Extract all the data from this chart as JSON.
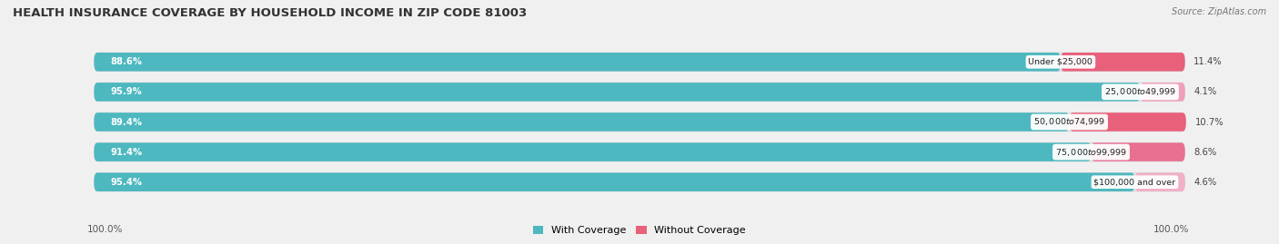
{
  "title": "HEALTH INSURANCE COVERAGE BY HOUSEHOLD INCOME IN ZIP CODE 81003",
  "source": "Source: ZipAtlas.com",
  "categories": [
    "Under $25,000",
    "$25,000 to $49,999",
    "$50,000 to $74,999",
    "$75,000 to $99,999",
    "$100,000 and over"
  ],
  "with_coverage": [
    88.6,
    95.9,
    89.4,
    91.4,
    95.4
  ],
  "without_coverage": [
    11.4,
    4.1,
    10.7,
    8.6,
    4.6
  ],
  "color_with": "#4db8c0",
  "color_without_0": "#e8607a",
  "color_without_1": "#f0a0b8",
  "color_without_2": "#e8607a",
  "color_without_3": "#e87090",
  "color_without_4": "#f0b0c8",
  "bar_bg": "#e4e4e8",
  "fig_bg": "#f0f0f0",
  "title_fontsize": 9.5,
  "bar_height": 0.62,
  "legend_label_with": "With Coverage",
  "legend_label_without": "Without Coverage",
  "x_left_label": "100.0%",
  "x_right_label": "100.0%",
  "total_width": 100
}
